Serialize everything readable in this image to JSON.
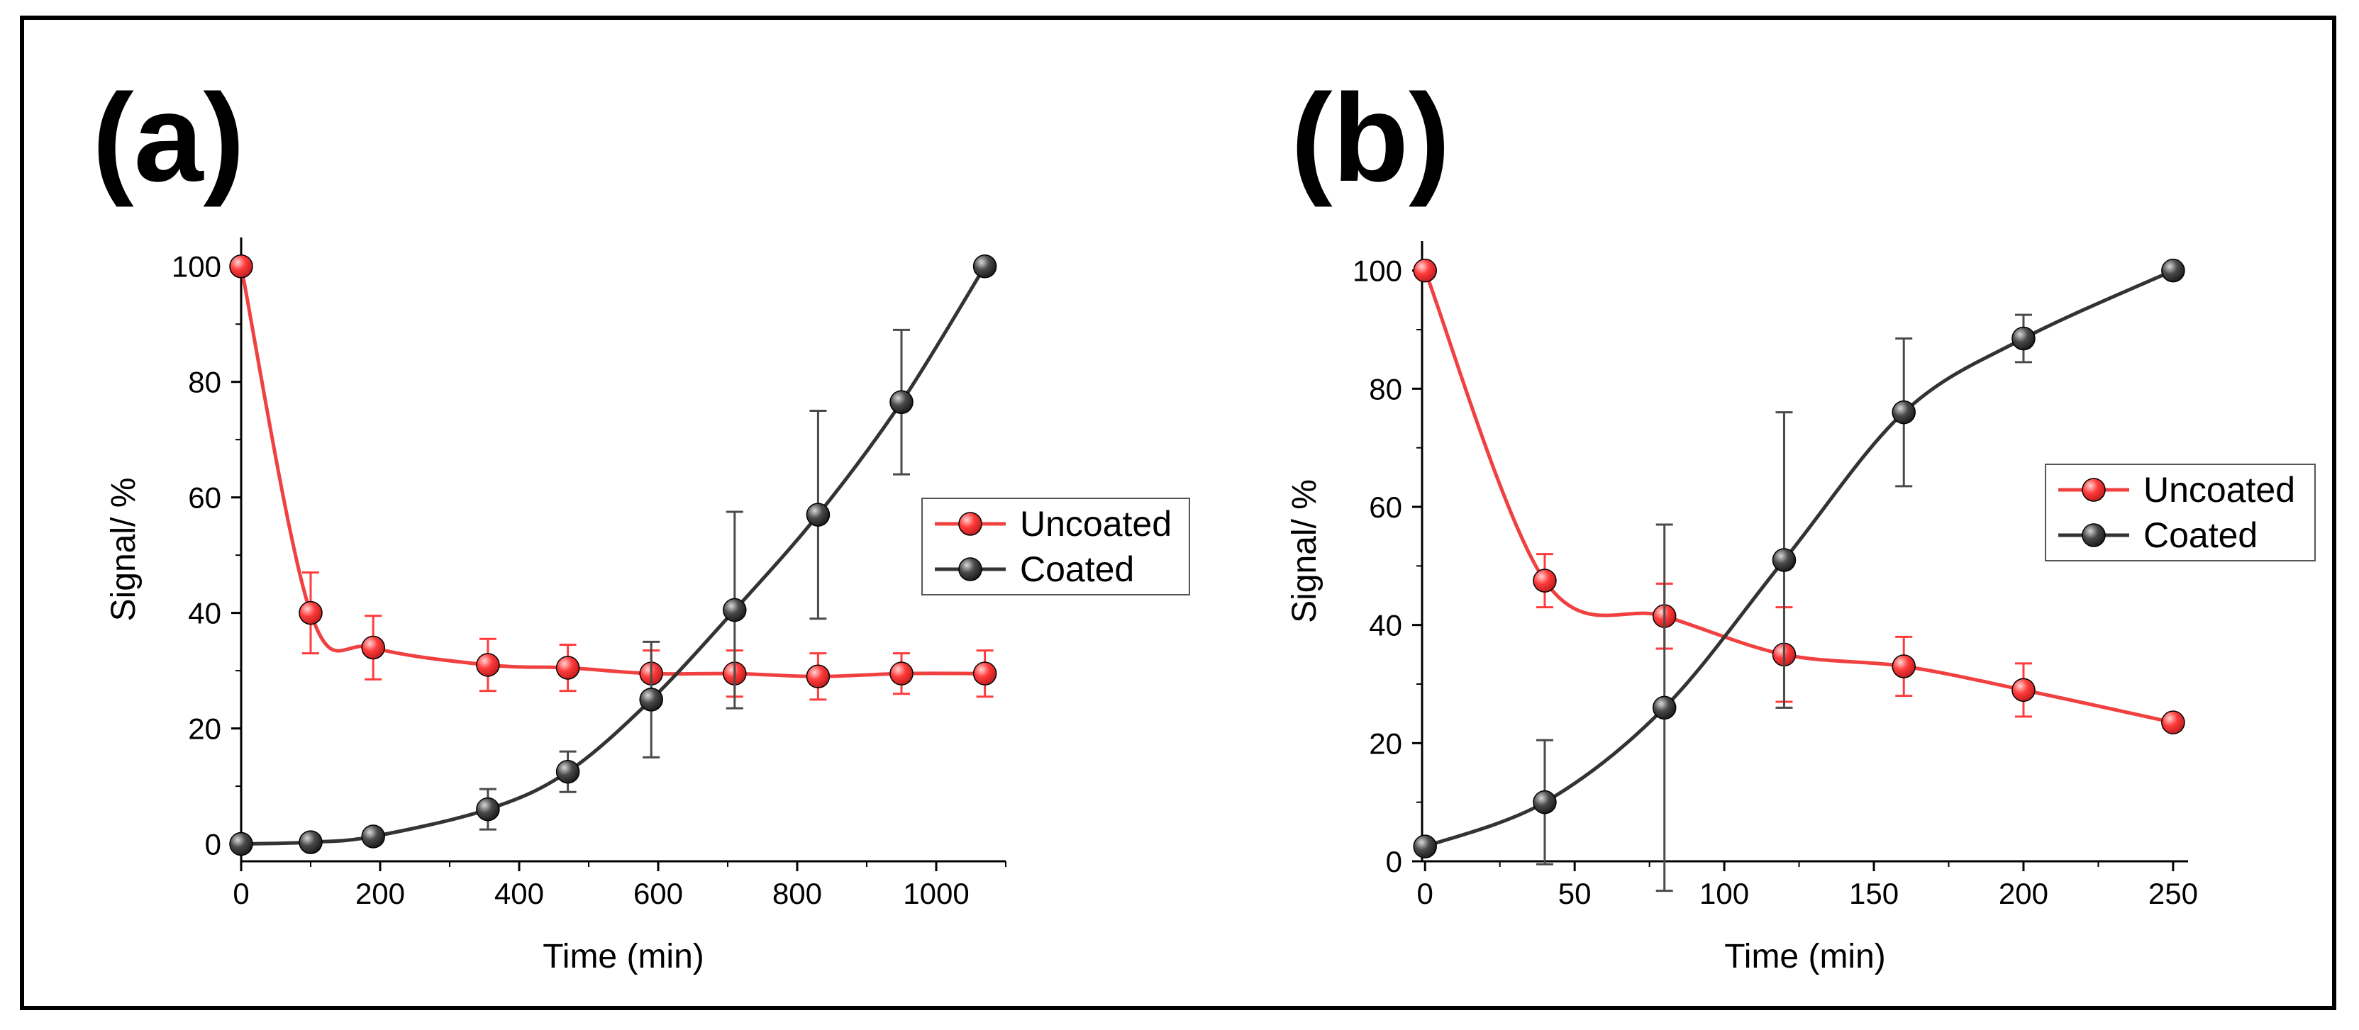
{
  "colors": {
    "uncoated": "#ff3b3b",
    "uncoated_line": "#f04040",
    "coated": "#4a4a4a",
    "coated_line": "#333333",
    "axis": "#000000"
  },
  "chart_data": [
    {
      "panel": "(a)",
      "type": "line",
      "xlabel": "Time (min)",
      "ylabel": "Signal/ %",
      "xlim": [
        0,
        1100
      ],
      "ylim": [
        -3,
        105
      ],
      "xticks": [
        0,
        200,
        400,
        600,
        800,
        1000
      ],
      "yticks": [
        0,
        20,
        40,
        60,
        80,
        100
      ],
      "legend": {
        "position": "center-right",
        "entries": [
          "Uncoated",
          "Coated"
        ]
      },
      "series": [
        {
          "name": "Uncoated",
          "color_key": "uncoated",
          "x": [
            0,
            100,
            190,
            355,
            470,
            590,
            710,
            830,
            950,
            1070
          ],
          "y": [
            100,
            40,
            34,
            31,
            30.5,
            29.5,
            29.5,
            29,
            29.5,
            29.5
          ],
          "err": [
            0,
            7,
            5.5,
            4.5,
            4,
            4,
            4,
            4,
            3.5,
            4
          ]
        },
        {
          "name": "Coated",
          "color_key": "coated",
          "x": [
            0,
            100,
            190,
            355,
            470,
            590,
            710,
            830,
            950,
            1070
          ],
          "y": [
            0,
            0.3,
            1.3,
            6,
            12.5,
            25,
            40.5,
            57,
            76.5,
            100
          ],
          "err": [
            0,
            0,
            0,
            3.5,
            3.5,
            10,
            17,
            18,
            12.5,
            0
          ]
        }
      ]
    },
    {
      "panel": "(b)",
      "type": "line",
      "xlabel": "Time (min)",
      "ylabel": "Signal/ %",
      "xlim": [
        -1,
        255
      ],
      "ylim": [
        0,
        105
      ],
      "xticks": [
        0,
        50,
        100,
        150,
        200,
        250
      ],
      "yticks": [
        0,
        20,
        40,
        60,
        80,
        100
      ],
      "legend": {
        "position": "center-right",
        "entries": [
          "Uncoated",
          "Coated"
        ]
      },
      "series": [
        {
          "name": "Uncoated",
          "color_key": "uncoated",
          "x": [
            0,
            40,
            80,
            120,
            160,
            200,
            250
          ],
          "y": [
            100,
            47.5,
            41.5,
            35,
            33,
            29,
            23.5
          ],
          "err": [
            0,
            4.5,
            5.5,
            8,
            5,
            4.5,
            0
          ]
        },
        {
          "name": "Coated",
          "color_key": "coated",
          "x": [
            0,
            40,
            80,
            120,
            160,
            200,
            250
          ],
          "y": [
            2.5,
            10,
            26,
            51,
            76,
            88.5,
            100
          ],
          "err": [
            0,
            10.5,
            31,
            25,
            12.5,
            4,
            0
          ]
        }
      ]
    }
  ]
}
